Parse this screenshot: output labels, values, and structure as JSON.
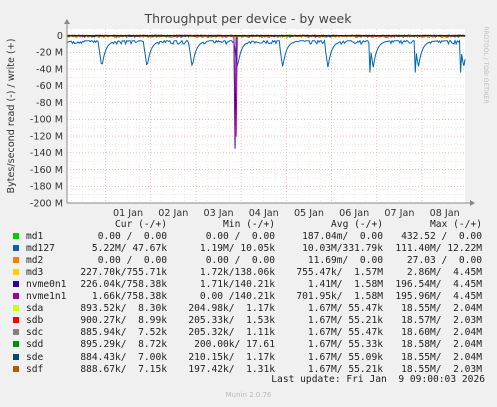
{
  "chart_data": {
    "type": "line",
    "title": "Throughput per device - by week",
    "ylabel": "Bytes/second read (-) / write (+)",
    "watermark": "RRDTOOL / TOBI OETIKER",
    "ylim": [
      -200,
      8
    ],
    "y_unit": "M",
    "yticks": [
      0,
      -20,
      -40,
      -60,
      -80,
      -100,
      -120,
      -140,
      -160,
      -180,
      -200
    ],
    "ytick_labels": [
      "0",
      "-20 M",
      "-40 M",
      "-60 M",
      "-80 M",
      "-100 M",
      "-120 M",
      "-140 M",
      "-160 M",
      "-180 M",
      "-200 M"
    ],
    "x_start_day": 0.15,
    "x_end_day": 8.95,
    "xticks": [
      1,
      2,
      3,
      4,
      5,
      6,
      7,
      8
    ],
    "xtick_labels": [
      "01 Jan",
      "02 Jan",
      "03 Jan",
      "04 Jan",
      "05 Jan",
      "06 Jan",
      "07 Jan",
      "08 Jan"
    ],
    "grid": true,
    "series": [
      {
        "name": "md1",
        "color": "#00cc00",
        "pattern": "flat",
        "base": -0.2,
        "amp": 0.3,
        "spike_day": null,
        "spike": 0
      },
      {
        "name": "md127",
        "color": "#0066b3",
        "pattern": "dip",
        "base": -6,
        "amp": 4,
        "spike_day": null,
        "spike": 0
      },
      {
        "name": "md2",
        "color": "#ff8000",
        "pattern": "flat",
        "base": -0.1,
        "amp": 0.2,
        "spike_day": null,
        "spike": 0
      },
      {
        "name": "md3",
        "color": "#ffcc00",
        "pattern": "flat",
        "base": 0.2,
        "amp": 0.4,
        "spike_day": null,
        "spike": 0
      },
      {
        "name": "nvme0n1",
        "color": "#330099",
        "pattern": "flat",
        "base": -0.5,
        "amp": 1.2,
        "spike_day": 3.86,
        "spike": -135
      },
      {
        "name": "nvme1n1",
        "color": "#990099",
        "pattern": "flat",
        "base": -0.5,
        "amp": 1.2,
        "spike_day": 3.88,
        "spike": -120
      },
      {
        "name": "sda",
        "color": "#ccff00",
        "pattern": "flat",
        "base": -0.2,
        "amp": 0.8,
        "spike_day": null,
        "spike": 0
      },
      {
        "name": "sdb",
        "color": "#ff0000",
        "pattern": "flat",
        "base": -0.2,
        "amp": 0.8,
        "spike_day": null,
        "spike": 0
      },
      {
        "name": "sdc",
        "color": "#808080",
        "pattern": "flat",
        "base": -0.2,
        "amp": 0.8,
        "spike_day": null,
        "spike": 0
      },
      {
        "name": "sdd",
        "color": "#008f00",
        "pattern": "flat",
        "base": -0.2,
        "amp": 0.8,
        "spike_day": null,
        "spike": 0
      },
      {
        "name": "sde",
        "color": "#00487d",
        "pattern": "flat",
        "base": -0.2,
        "amp": 0.8,
        "spike_day": null,
        "spike": 0
      },
      {
        "name": "sdf",
        "color": "#b35a00",
        "pattern": "flat",
        "base": -0.2,
        "amp": 0.8,
        "spike_day": null,
        "spike": 0
      }
    ]
  },
  "legend": {
    "headers": [
      "Cur (-/+)",
      "Min (-/+)",
      "Avg (-/+)",
      "Max (-/+)"
    ],
    "rows": [
      {
        "name": "md1",
        "color": "#00cc00",
        "cur": "0.00 /  0.00",
        "min": "0.00 /  0.00",
        "avg": "187.04m/  0.00",
        "max": "432.52 /  0.00"
      },
      {
        "name": "md127",
        "color": "#0066b3",
        "cur": "5.22M/ 47.67k",
        "min": "1.19M/ 10.05k",
        "avg": "10.03M/331.79k",
        "max": "111.40M/ 12.22M"
      },
      {
        "name": "md2",
        "color": "#ff8000",
        "cur": "0.00 /  0.00",
        "min": "0.00 /  0.00",
        "avg": "11.69m/  0.00",
        "max": "27.03 /  0.00"
      },
      {
        "name": "md3",
        "color": "#ffcc00",
        "cur": "227.70k/755.71k",
        "min": "1.72k/138.06k",
        "avg": "755.47k/  1.57M",
        "max": "2.86M/  4.45M"
      },
      {
        "name": "nvme0n1",
        "color": "#330099",
        "cur": "226.04k/758.38k",
        "min": "1.71k/140.21k",
        "avg": "1.41M/  1.58M",
        "max": "196.54M/  4.45M"
      },
      {
        "name": "nvme1n1",
        "color": "#990099",
        "cur": "1.66k/758.38k",
        "min": "0.00 /140.21k",
        "avg": "701.95k/  1.58M",
        "max": "195.96M/  4.45M"
      },
      {
        "name": "sda",
        "color": "#ccff00",
        "cur": "893.52k/  8.30k",
        "min": "204.98k/  1.17k",
        "avg": "1.67M/ 55.47k",
        "max": "18.55M/  2.04M"
      },
      {
        "name": "sdb",
        "color": "#ff0000",
        "cur": "900.27k/  8.99k",
        "min": "205.33k/  1.53k",
        "avg": "1.67M/ 55.21k",
        "max": "18.57M/  2.03M"
      },
      {
        "name": "sdc",
        "color": "#808080",
        "cur": "885.94k/  7.52k",
        "min": "205.32k/  1.11k",
        "avg": "1.67M/ 55.47k",
        "max": "18.60M/  2.04M"
      },
      {
        "name": "sdd",
        "color": "#008f00",
        "cur": "895.29k/  8.72k",
        "min": "200.00k/ 17.61",
        "avg": "1.67M/ 55.33k",
        "max": "18.58M/  2.04M"
      },
      {
        "name": "sde",
        "color": "#00487d",
        "cur": "884.43k/  7.00k",
        "min": "210.15k/  1.17k",
        "avg": "1.67M/ 55.09k",
        "max": "18.55M/  2.04M"
      },
      {
        "name": "sdf",
        "color": "#b35a00",
        "cur": "888.67k/  7.15k",
        "min": "197.42k/  1.31k",
        "avg": "1.67M/ 55.21k",
        "max": "18.55M/  2.03M"
      }
    ]
  },
  "footer": {
    "last_update": "Last update: Fri Jan  9 09:00:03 2026",
    "munin": "Munin 2.0.76"
  }
}
